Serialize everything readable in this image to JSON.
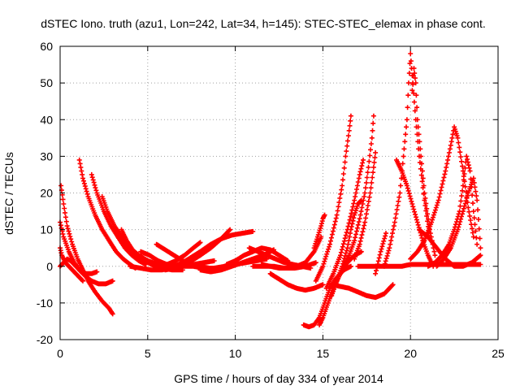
{
  "chart_data": {
    "type": "scatter",
    "title": "dSTEC Iono. truth (azu1, Lon=242, Lat=34, h=145): STEC-STEC_elemax in phase cont.",
    "xlabel": "GPS time / hours of day 334 of year 2014",
    "ylabel": "dSTEC  / TECUs",
    "xlim": [
      0,
      25
    ],
    "ylim": [
      -20,
      60
    ],
    "xticks": [
      0,
      5,
      10,
      15,
      20,
      25
    ],
    "yticks": [
      -20,
      -10,
      0,
      10,
      20,
      30,
      40,
      50,
      60
    ],
    "grid": true,
    "marker": "+",
    "color": "#ff0000",
    "series": [
      {
        "x": [
          0.05,
          0.2,
          0.4,
          0.7,
          1.0,
          1.3,
          1.6,
          2.0,
          2.4,
          2.8,
          3.0
        ],
        "y": [
          22,
          17,
          11,
          6,
          2,
          -1,
          -4,
          -7,
          -9.5,
          -11.5,
          -13
        ]
      },
      {
        "x": [
          0.0,
          0.2,
          0.5,
          0.8,
          1.1,
          1.4,
          1.8,
          2.2,
          2.6,
          3.0
        ],
        "y": [
          12,
          8,
          4,
          1,
          -1,
          -2.5,
          -4,
          -4.8,
          -4.8,
          -4
        ]
      },
      {
        "x": [
          0.0,
          0.1,
          0.3,
          0.5,
          0.7,
          0.9,
          1.1,
          1.3
        ],
        "y": [
          5,
          3,
          1,
          0,
          -1,
          -2,
          -3,
          -4
        ]
      },
      {
        "x": [
          0.0,
          0.2,
          0.4,
          0.6,
          0.9,
          1.2,
          1.5,
          1.8,
          2.1
        ],
        "y": [
          0,
          1,
          2,
          1.5,
          0,
          -1.5,
          -2,
          -2,
          -1.5
        ]
      },
      {
        "x": [
          1.1,
          1.3,
          1.6,
          2.0,
          2.4,
          2.8,
          3.2,
          3.6,
          4.0,
          4.3
        ],
        "y": [
          29,
          24,
          19,
          14,
          10,
          7,
          4,
          2,
          0.5,
          -0.5
        ]
      },
      {
        "x": [
          1.8,
          2.1,
          2.5,
          2.9,
          3.3,
          3.7,
          4.1,
          4.5,
          4.9
        ],
        "y": [
          25,
          20,
          15,
          11,
          8,
          5,
          3,
          1.5,
          0.5
        ]
      },
      {
        "x": [
          2.4,
          2.7,
          3.1,
          3.5,
          4.0,
          4.5,
          5.0,
          5.6,
          6.2
        ],
        "y": [
          19,
          15,
          11,
          8,
          5,
          3,
          1.5,
          0.5,
          0
        ]
      },
      {
        "x": [
          3.5,
          3.8,
          4.2,
          4.7,
          5.2,
          5.8,
          6.4,
          7.0
        ],
        "y": [
          10,
          7,
          4,
          2,
          0.5,
          -0.5,
          -1,
          -1
        ]
      },
      {
        "x": [
          3.3,
          3.7,
          4.2,
          4.8,
          5.4,
          6.0,
          6.5
        ],
        "y": [
          8,
          6,
          3.5,
          1.5,
          0.5,
          0,
          0
        ]
      },
      {
        "x": [
          4.0,
          4.6,
          5.2,
          5.8,
          6.4,
          7.0,
          7.6,
          8.2,
          8.8
        ],
        "y": [
          0,
          -0.5,
          -1,
          -1,
          -0.5,
          0,
          0.5,
          1,
          1.5
        ]
      },
      {
        "x": [
          4.6,
          5.1,
          5.6,
          6.1,
          6.6,
          7.1,
          7.6,
          8.0
        ],
        "y": [
          4,
          3,
          1.5,
          0.5,
          1.5,
          3,
          5,
          6.5
        ]
      },
      {
        "x": [
          5.5,
          6.0,
          6.5,
          7.0,
          7.5,
          8.0,
          8.5,
          9.0
        ],
        "y": [
          6,
          4.5,
          3,
          1.5,
          0.5,
          0,
          -0.5,
          -1
        ]
      },
      {
        "x": [
          6.0,
          6.5,
          7.0,
          7.5,
          8.0,
          8.6,
          9.2,
          9.7
        ],
        "y": [
          -1,
          -0.5,
          0.5,
          1.5,
          3,
          5,
          7.5,
          10
        ]
      },
      {
        "x": [
          6.5,
          7.0,
          7.5,
          8.0,
          8.6,
          9.2,
          9.8,
          10.4,
          11.0
        ],
        "y": [
          0,
          1,
          2.5,
          4,
          6,
          7.5,
          8.5,
          9,
          9.5
        ]
      },
      {
        "x": [
          7.0,
          7.6,
          8.2,
          8.8,
          9.4,
          10.0,
          10.6,
          11.2,
          11.8
        ],
        "y": [
          0,
          0,
          -0.5,
          -0.5,
          0,
          0.5,
          1,
          1.5,
          2
        ]
      },
      {
        "x": [
          8.0,
          8.6,
          9.2,
          9.8,
          10.4,
          11.0,
          11.6,
          12.2
        ],
        "y": [
          -1,
          -1.5,
          -1,
          0,
          1,
          2,
          3,
          4.5
        ]
      },
      {
        "x": [
          9.5,
          10.0,
          10.5,
          11.0,
          11.5,
          12.0,
          12.5,
          13.0
        ],
        "y": [
          0.5,
          1.5,
          3,
          4,
          5,
          4.5,
          3,
          1.5
        ]
      },
      {
        "x": [
          10.8,
          11.3,
          11.8,
          12.3,
          12.8,
          13.3,
          13.8,
          14.3
        ],
        "y": [
          5,
          4,
          3,
          2,
          1,
          0.5,
          0,
          -0.5
        ]
      },
      {
        "x": [
          11.5,
          12.0,
          12.5,
          13.0,
          13.5,
          14.0,
          14.5,
          14.9
        ],
        "y": [
          0.5,
          0,
          -0.5,
          -0.5,
          0,
          1,
          4,
          8
        ]
      },
      {
        "x": [
          11.0,
          11.6,
          12.2,
          12.8,
          13.4,
          14.0,
          14.6
        ],
        "y": [
          0,
          0,
          0,
          -0.5,
          -0.5,
          0,
          1
        ]
      },
      {
        "x": [
          12.0,
          12.5,
          13.0,
          13.5,
          14.0,
          14.5,
          15.0
        ],
        "y": [
          -2,
          -3.5,
          -5,
          -6,
          -6.5,
          -6,
          -5
        ]
      },
      {
        "x": [
          14.5,
          14.7,
          14.9,
          15.0,
          15.1
        ],
        "y": [
          5,
          8,
          11,
          13,
          14
        ]
      },
      {
        "x": [
          13.9,
          14.2,
          14.5,
          14.8,
          15.1,
          15.4,
          15.8,
          16.2,
          16.6
        ],
        "y": [
          -16,
          -16.5,
          -16,
          -14,
          -10,
          -6,
          -3,
          -1,
          0
        ]
      },
      {
        "x": [
          14.8,
          15.0,
          15.3,
          15.6,
          16.0,
          16.4,
          16.8,
          17.2
        ],
        "y": [
          -16,
          -14,
          -10,
          -6,
          -2,
          1,
          3,
          4
        ]
      },
      {
        "x": [
          14.6,
          15.0,
          15.4,
          15.8,
          16.1,
          16.3,
          16.5,
          16.6
        ],
        "y": [
          -4,
          0,
          6,
          14,
          22,
          30,
          37,
          41
        ]
      },
      {
        "x": [
          15.2,
          15.6,
          16.0,
          16.4,
          16.8,
          17.1,
          17.3
        ],
        "y": [
          -6,
          -2,
          3,
          10,
          18,
          25,
          29
        ]
      },
      {
        "x": [
          15.5,
          15.8,
          16.1,
          16.4,
          16.6,
          16.8,
          17.0,
          17.2
        ],
        "y": [
          -8,
          -4,
          0,
          5,
          10,
          14,
          17,
          18
        ]
      },
      {
        "x": [
          16.2,
          16.5,
          16.8,
          17.1,
          17.4,
          17.6,
          17.8,
          17.9
        ],
        "y": [
          0,
          3,
          7,
          13,
          20,
          27,
          35,
          41
        ]
      },
      {
        "x": [
          16.8,
          17.1,
          17.4,
          17.7,
          17.9,
          18.0
        ],
        "y": [
          2,
          6,
          12,
          20,
          27,
          31
        ]
      },
      {
        "x": [
          15.5,
          16.0,
          16.5,
          17.0,
          17.5,
          18.0,
          18.5,
          19.0
        ],
        "y": [
          -5,
          -5.5,
          -6,
          -7,
          -8,
          -8.5,
          -7.5,
          -5
        ]
      },
      {
        "x": [
          18.0,
          18.3,
          18.6
        ],
        "y": [
          -2,
          4,
          9
        ]
      },
      {
        "x": [
          17.0,
          17.5,
          18.0,
          18.5,
          19.0,
          19.5,
          20.0,
          20.5,
          21.0,
          21.5,
          22.0,
          22.5,
          23.0,
          23.5,
          24.0
        ],
        "y": [
          0,
          0,
          0,
          0,
          0,
          0,
          0.5,
          0.5,
          0.5,
          0.5,
          0.5,
          0.5,
          0.5,
          0.5,
          0.5
        ]
      },
      {
        "x": [
          18.5,
          18.8,
          19.1,
          19.4,
          19.6,
          19.8,
          19.9,
          20.0,
          20.1,
          20.3,
          20.5,
          20.8,
          21.1
        ],
        "y": [
          0,
          5,
          12,
          20,
          30,
          40,
          50,
          58,
          52,
          40,
          30,
          18,
          8
        ]
      },
      {
        "x": [
          19.2,
          19.5,
          19.8,
          20.1,
          20.4,
          20.7,
          21.0,
          21.3
        ],
        "y": [
          29,
          26,
          22,
          17,
          12,
          7,
          3,
          0
        ]
      },
      {
        "x": [
          20.1,
          20.2,
          20.3,
          20.4,
          20.6,
          20.8,
          21.1,
          21.4
        ],
        "y": [
          48,
          54,
          50,
          40,
          30,
          20,
          10,
          3
        ]
      },
      {
        "x": [
          20.0,
          20.4,
          20.8,
          21.2,
          21.6,
          22.0,
          22.3,
          22.5,
          22.7,
          23.0,
          23.3,
          23.6
        ],
        "y": [
          2,
          4,
          7,
          12,
          18,
          26,
          33,
          38,
          35,
          26,
          16,
          8
        ]
      },
      {
        "x": [
          21.0,
          21.4,
          21.8,
          22.2,
          22.5,
          22.8,
          23.0,
          23.2,
          23.4,
          23.6,
          23.8
        ],
        "y": [
          0,
          1,
          3,
          6,
          10,
          15,
          22,
          30,
          26,
          15,
          6
        ]
      },
      {
        "x": [
          21.5,
          21.9,
          22.3,
          22.7,
          23.0,
          23.3,
          23.6,
          23.8,
          24.0
        ],
        "y": [
          0,
          2,
          5,
          10,
          15,
          20,
          24,
          18,
          5
        ]
      },
      {
        "x": [
          20.5,
          21.0,
          21.5,
          22.0,
          22.5,
          23.0,
          23.5,
          24.0
        ],
        "y": [
          10,
          8,
          5,
          2,
          0,
          0,
          1,
          3
        ]
      }
    ]
  }
}
